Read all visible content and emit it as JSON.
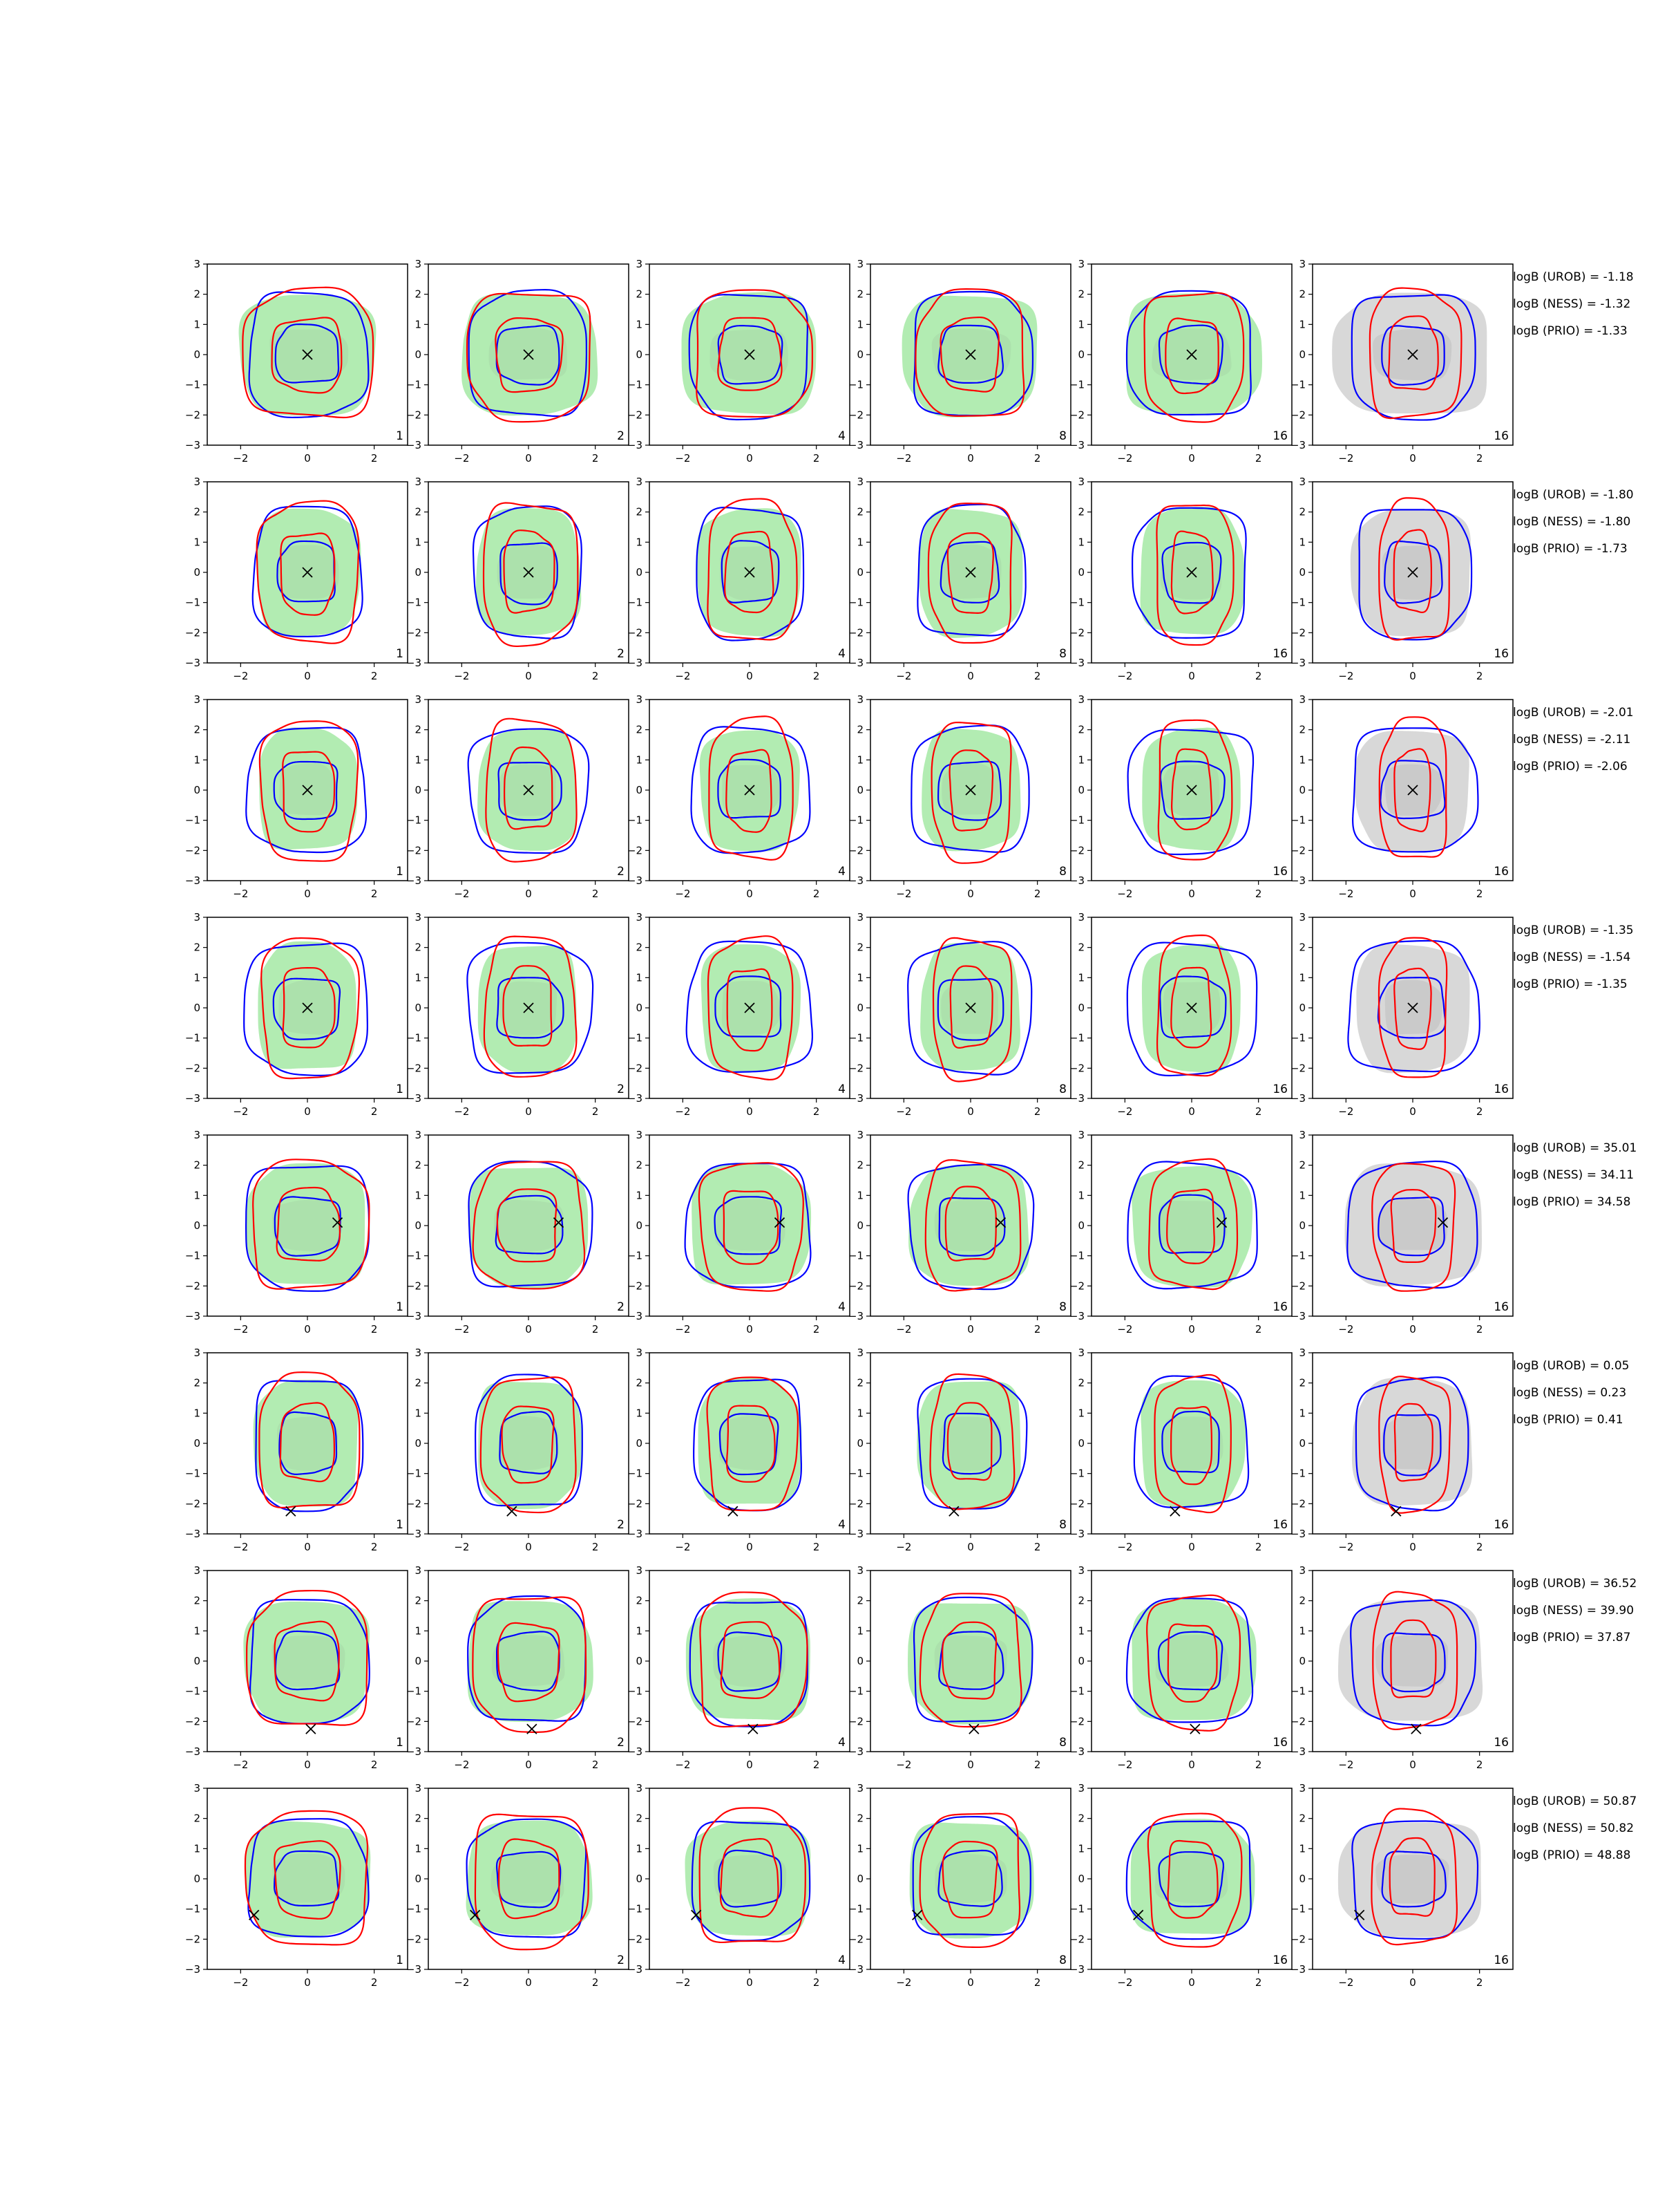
{
  "colors": {
    "fill_green": "#b2ecb2",
    "fill_gray": "#d8d8d8",
    "inner_gray": "#bfbfbf",
    "curve_blue": "#0000ff",
    "curve_red": "#ff0000",
    "marker": "#000000"
  },
  "axis": {
    "xlim": [
      -3,
      3
    ],
    "ylim": [
      -3,
      3
    ],
    "xticks": [
      "−2",
      "0",
      "2"
    ],
    "yticks": [
      "3",
      "2",
      "1",
      "0",
      "−1",
      "−2",
      "−3"
    ]
  },
  "columns": [
    {
      "label": "1",
      "style": "green"
    },
    {
      "label": "2",
      "style": "green"
    },
    {
      "label": "4",
      "style": "green"
    },
    {
      "label": "8",
      "style": "green"
    },
    {
      "label": "16",
      "style": "green"
    },
    {
      "label": "16",
      "style": "gray"
    }
  ],
  "chart_data": {
    "type": "contour",
    "rows": [
      {
        "marker": [
          0,
          0
        ],
        "shape": {
          "wx": 1.3,
          "wy": 1.0,
          "blue_w": 1.1,
          "red_h": 1.0
        },
        "logb": [
          "logB (UROB) = -1.18",
          "logB (NESS) = -1.32",
          "logB (PRIO) = -1.33"
        ]
      },
      {
        "marker": [
          0,
          0
        ],
        "shape": {
          "wx": 1.0,
          "wy": 1.05,
          "blue_w": 1.0,
          "red_h": 1.1
        },
        "logb": [
          "logB (UROB) = -1.80",
          "logB (NESS) = -1.80",
          "logB (PRIO) = -1.73"
        ]
      },
      {
        "marker": [
          0,
          0
        ],
        "shape": {
          "wx": 0.95,
          "wy": 1.0,
          "blue_w": 1.1,
          "red_h": 1.1
        },
        "logb": [
          "logB (UROB) = -2.01",
          "logB (NESS) = -2.11",
          "logB (PRIO) = -2.06"
        ]
      },
      {
        "marker": [
          0,
          0
        ],
        "shape": {
          "wx": 0.95,
          "wy": 1.05,
          "blue_w": 1.15,
          "red_h": 1.1
        },
        "logb": [
          "logB (UROB) = -1.35",
          "logB (NESS) = -1.54",
          "logB (PRIO) = -1.35"
        ]
      },
      {
        "marker": [
          0.9,
          0.1
        ],
        "shape": {
          "wx": 1.15,
          "wy": 1.0,
          "blue_w": 1.15,
          "red_h": 1.0
        },
        "logb": [
          "logB (UROB) = 35.01",
          "logB (NESS) = 34.11",
          "logB (PRIO) = 34.58"
        ]
      },
      {
        "marker": [
          -0.5,
          -2.25
        ],
        "shape": {
          "wx": 1.0,
          "wy": 1.05,
          "blue_w": 1.0,
          "red_h": 1.05
        },
        "logb": [
          "logB (UROB) = 0.05",
          "logB (NESS) = 0.23",
          "logB (PRIO) = 0.41"
        ]
      },
      {
        "marker": [
          0.1,
          -2.25
        ],
        "shape": {
          "wx": 1.2,
          "wy": 1.0,
          "blue_w": 1.1,
          "red_h": 1.05
        },
        "logb": [
          "logB (UROB) = 36.52",
          "logB (NESS) = 39.90",
          "logB (PRIO) = 37.87"
        ]
      },
      {
        "marker": [
          -1.6,
          -1.2
        ],
        "shape": {
          "wx": 1.2,
          "wy": 0.95,
          "blue_w": 1.1,
          "red_h": 1.05
        },
        "logb": [
          "logB (UROB) = 50.87",
          "logB (NESS) = 50.82",
          "logB (PRIO) = 48.88"
        ]
      }
    ]
  }
}
